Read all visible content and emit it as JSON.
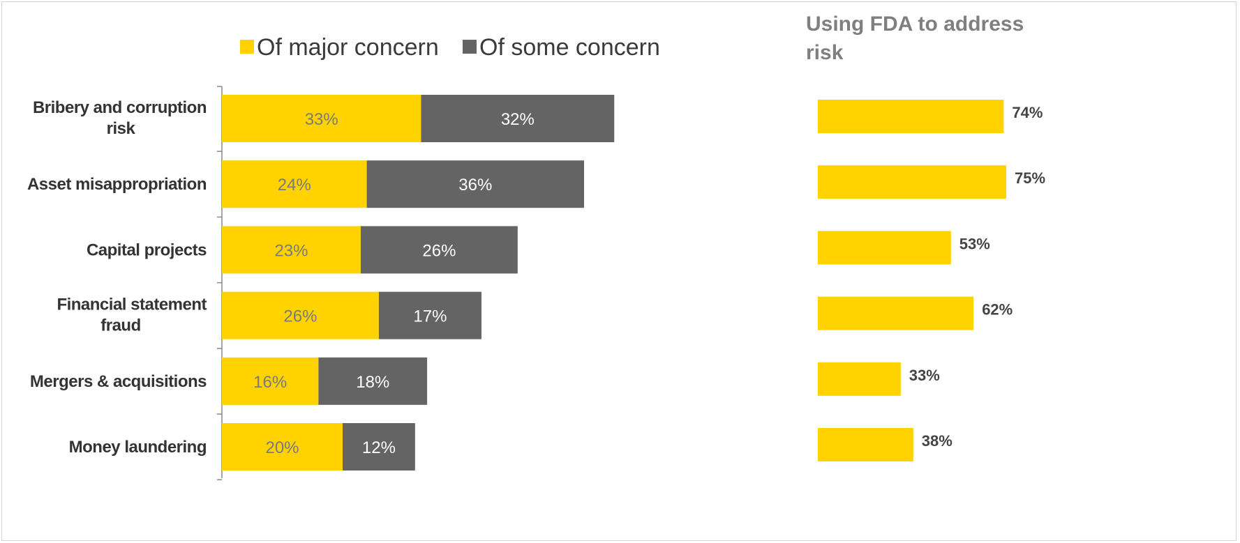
{
  "colors": {
    "major": "#FFD200",
    "some": "#646464",
    "fda": "#FFD200",
    "axis": "#888888",
    "major_label": "#7a7a7a",
    "some_label": "#ffffff"
  },
  "chart_data": [
    {
      "type": "bar",
      "orientation": "horizontal",
      "stacked": true,
      "title": "",
      "xlabel": "",
      "ylabel": "",
      "legend_position": "top",
      "grid": false,
      "xlim": [
        0,
        70
      ],
      "categories": [
        "Bribery and corruption risk",
        "Asset misappropriation",
        "Capital projects",
        "Financial statement fraud",
        "Mergers & acquisitions",
        "Money laundering"
      ],
      "category_lines": [
        [
          "Bribery and corruption",
          "risk"
        ],
        [
          "Asset misappropriation"
        ],
        [
          "Capital projects"
        ],
        [
          "Financial statement",
          "fraud"
        ],
        [
          "Mergers & acquisitions"
        ],
        [
          "Money laundering"
        ]
      ],
      "series": [
        {
          "name": "Of major concern",
          "values": [
            33,
            24,
            23,
            26,
            16,
            20
          ],
          "labels": [
            "33%",
            "24%",
            "23%",
            "26%",
            "16%",
            "20%"
          ]
        },
        {
          "name": "Of some concern",
          "values": [
            32,
            36,
            26,
            17,
            18,
            12
          ],
          "labels": [
            "32%",
            "36%",
            "26%",
            "17%",
            "18%",
            "12%"
          ]
        }
      ]
    },
    {
      "type": "bar",
      "orientation": "horizontal",
      "title": "Using FDA to address risk",
      "title_lines": [
        "Using FDA to address",
        "risk"
      ],
      "xlabel": "",
      "ylabel": "",
      "grid": false,
      "xlim": [
        0,
        100
      ],
      "categories": [
        "Bribery and corruption risk",
        "Asset misappropriation",
        "Capital projects",
        "Financial statement fraud",
        "Mergers & acquisitions",
        "Money laundering"
      ],
      "values": [
        74,
        75,
        53,
        62,
        33,
        38
      ],
      "labels": [
        "74%",
        "75%",
        "53%",
        "62%",
        "33%",
        "38%"
      ]
    }
  ]
}
